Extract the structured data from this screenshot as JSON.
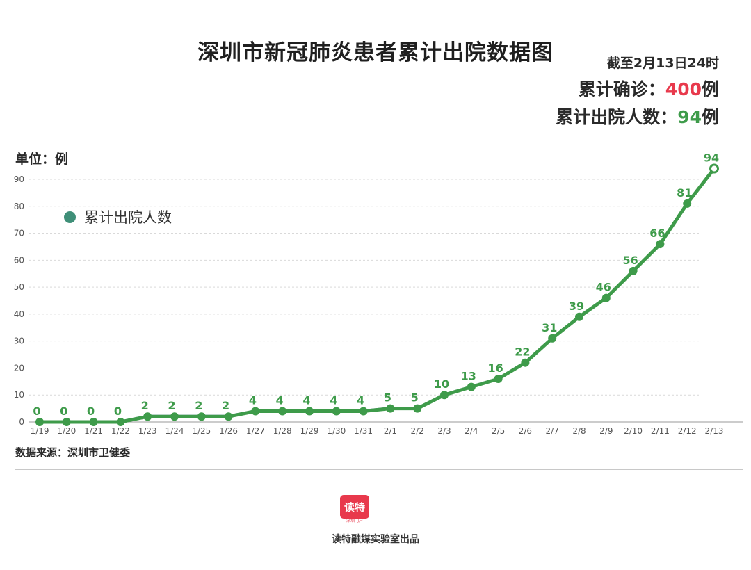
{
  "header": {
    "title": "深圳市新冠肺炎患者累计出院数据图",
    "date_label": "截至2月13日24时",
    "confirmed_label": "累计确诊：",
    "confirmed_value": "400",
    "confirmed_suffix": "例",
    "discharged_label": "累计出院人数：",
    "discharged_value": "94",
    "discharged_suffix": "例"
  },
  "unit_label": "单位：例",
  "footer": {
    "source": "数据来源：深圳市卫健委",
    "logo_text": "读特",
    "logo_sub": "深圳门户",
    "credit": "读特融媒实验室出品"
  },
  "colors": {
    "line": "#3e9b4a",
    "shadow_line": "#5a6fb0",
    "legend_dot": "#3f8f78",
    "confirmed": "#e8394c",
    "discharged": "#3e9b4a"
  },
  "chart_data": {
    "type": "line",
    "categories": [
      "1/19",
      "1/20",
      "1/21",
      "1/22",
      "1/23",
      "1/24",
      "1/25",
      "1/26",
      "1/27",
      "1/28",
      "1/29",
      "1/30",
      "1/31",
      "2/1",
      "2/2",
      "2/3",
      "2/4",
      "2/5",
      "2/6",
      "2/7",
      "2/8",
      "2/9",
      "2/10",
      "2/11",
      "2/12",
      "2/13"
    ],
    "series": [
      {
        "name": "累计出院人数",
        "values": [
          0,
          0,
          0,
          0,
          2,
          2,
          2,
          2,
          4,
          4,
          4,
          4,
          4,
          5,
          5,
          10,
          13,
          16,
          22,
          31,
          39,
          46,
          56,
          66,
          81,
          94
        ]
      }
    ],
    "ylim": [
      0,
      90
    ],
    "yticks": [
      0,
      10,
      20,
      30,
      40,
      50,
      60,
      70,
      80,
      90
    ],
    "grid": true,
    "legend_position": "top-left"
  }
}
